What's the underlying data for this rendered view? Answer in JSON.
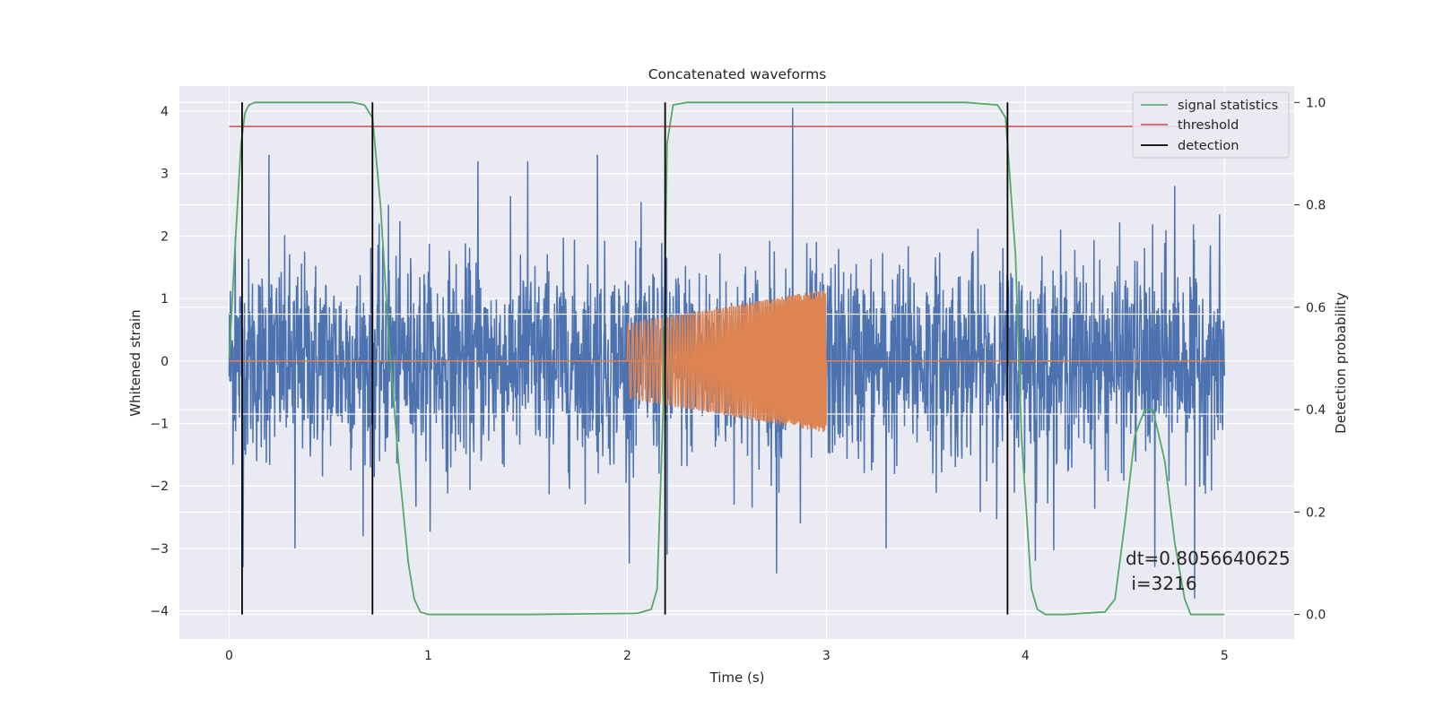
{
  "chart_data": {
    "type": "line",
    "title": "Concatenated waveforms",
    "xlabel": "Time (s)",
    "ylabel": "Whitened strain",
    "ylabel_right": "Detection probability",
    "xlim": [
      -0.25,
      5.35
    ],
    "ylim": [
      -4.45,
      4.4
    ],
    "ylim_right": [
      -0.048,
      1.032
    ],
    "xticks": [
      0,
      1,
      2,
      3,
      4,
      5
    ],
    "xtick_labels": [
      "0",
      "1",
      "2",
      "3",
      "4",
      "5"
    ],
    "yticks": [
      -4,
      -3,
      -2,
      -1,
      0,
      1,
      2,
      3,
      4
    ],
    "ytick_labels": [
      "−4",
      "−3",
      "−2",
      "−1",
      "0",
      "1",
      "2",
      "3",
      "4"
    ],
    "yticks_right": [
      0.0,
      0.2,
      0.4,
      0.6,
      0.8,
      1.0
    ],
    "ytick_labels_right": [
      "0.0",
      "0.2",
      "0.4",
      "0.6",
      "0.8",
      "1.0"
    ],
    "grid": true,
    "legend_position": "top-right",
    "legend": [
      "signal statistics",
      "threshold",
      "detection"
    ],
    "colors": {
      "strain": "#4c72b0",
      "injection": "#dd8452",
      "signal_statistics": "#55a868",
      "threshold": "#c44e52",
      "detection": "#000000",
      "axes_bg": "#eaeaf2",
      "grid": "#ffffff"
    },
    "series": [
      {
        "name": "",
        "axis": "left",
        "description_kind": "noise",
        "x_range": [
          0.0,
          5.0
        ],
        "amplitude_typical": 1.3,
        "peaks": [
          {
            "x": 0.03,
            "y": 2.0
          },
          {
            "x": 0.07,
            "y": -3.3
          },
          {
            "x": 0.2,
            "y": 3.3
          },
          {
            "x": 0.33,
            "y": -3.0
          },
          {
            "x": 0.8,
            "y": 2.5
          },
          {
            "x": 1.25,
            "y": 3.2
          },
          {
            "x": 1.5,
            "y": 3.2
          },
          {
            "x": 1.85,
            "y": 3.3
          },
          {
            "x": 2.2,
            "y": -3.1
          },
          {
            "x": 2.83,
            "y": 4.05
          },
          {
            "x": 2.87,
            "y": -2.6
          },
          {
            "x": 2.75,
            "y": -3.4
          },
          {
            "x": 3.3,
            "y": -3.0
          },
          {
            "x": 4.05,
            "y": -3.2
          },
          {
            "x": 4.65,
            "y": -3.3
          },
          {
            "x": 4.75,
            "y": 2.8
          },
          {
            "x": 4.85,
            "y": -3.8
          }
        ]
      },
      {
        "name": "",
        "axis": "left",
        "description_kind": "chirp",
        "x_range": [
          2.0,
          3.0
        ],
        "amplitude_start": 0.6,
        "amplitude_end": 1.15,
        "baseline": 0.0
      },
      {
        "name": "signal statistics",
        "axis": "right",
        "x": [
          0.0,
          0.03,
          0.06,
          0.08,
          0.1,
          0.13,
          0.2,
          0.4,
          0.62,
          0.68,
          0.72,
          0.76,
          0.8,
          0.85,
          0.9,
          0.93,
          0.96,
          1.0,
          1.5,
          2.05,
          2.12,
          2.15,
          2.18,
          2.2,
          2.23,
          2.3,
          3.0,
          3.7,
          3.86,
          3.9,
          3.95,
          3.98,
          4.03,
          4.06,
          4.1,
          4.2,
          4.4,
          4.45,
          4.5,
          4.55,
          4.6,
          4.64,
          4.7,
          4.75,
          4.8,
          4.83,
          4.87,
          5.0
        ],
        "y": [
          0.5,
          0.72,
          0.92,
          0.98,
          0.995,
          1.0,
          1.0,
          1.0,
          1.0,
          0.995,
          0.97,
          0.8,
          0.55,
          0.3,
          0.1,
          0.03,
          0.005,
          0.0,
          0.0,
          0.002,
          0.01,
          0.05,
          0.4,
          0.92,
          0.995,
          1.0,
          1.0,
          1.0,
          0.995,
          0.97,
          0.7,
          0.35,
          0.05,
          0.01,
          0.0,
          0.0,
          0.005,
          0.03,
          0.18,
          0.35,
          0.4,
          0.4,
          0.3,
          0.14,
          0.03,
          0.0,
          0.0,
          0.0
        ]
      },
      {
        "name": "threshold",
        "axis": "right",
        "x": [
          0.0,
          5.0
        ],
        "y": [
          0.953,
          0.953
        ]
      },
      {
        "name": "detection",
        "axis": "right",
        "kind": "vlines",
        "x": [
          0.065,
          0.72,
          2.19,
          3.91
        ],
        "y_range": [
          0.0,
          1.0
        ]
      }
    ],
    "hlines_white": [
      0.75,
      -0.85
    ],
    "annotation": {
      "line1": "dt=0.8056640625",
      "line2": " i=3216",
      "x": 4.5,
      "y": -3.3
    }
  }
}
